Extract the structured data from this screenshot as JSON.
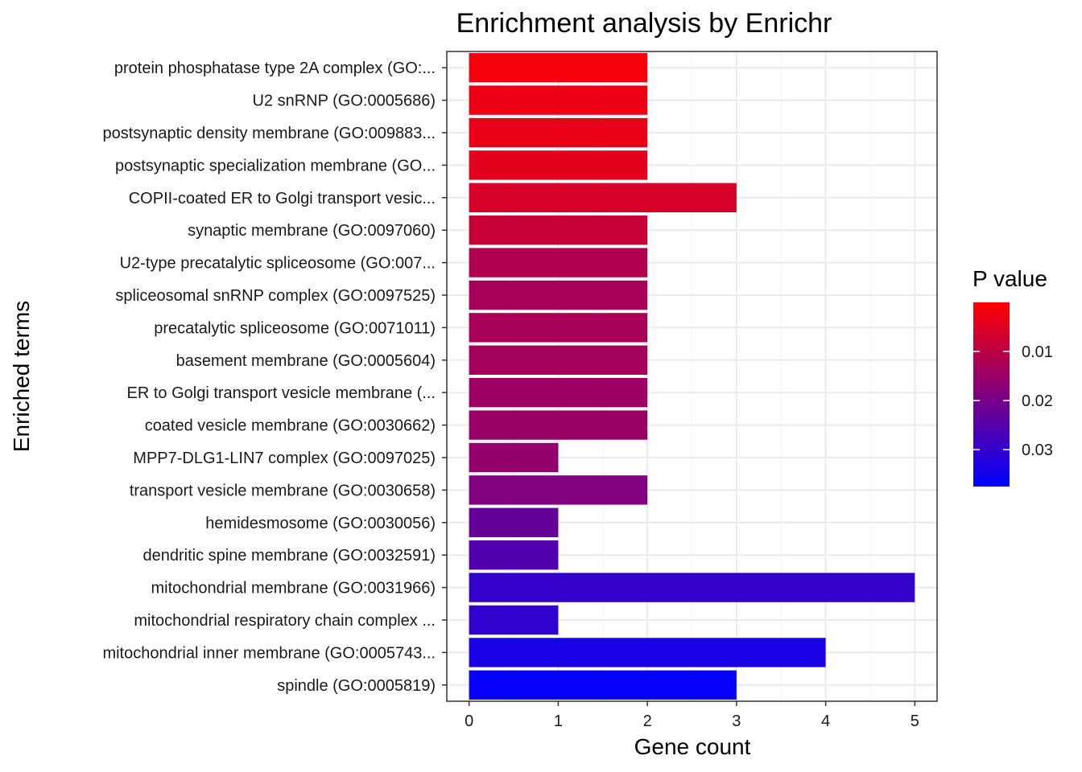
{
  "chart_data": {
    "type": "bar",
    "orientation": "horizontal",
    "title": "Enrichment analysis by Enrichr",
    "xlabel": "Gene count",
    "ylabel": "Enriched terms",
    "xlim": [
      -0.25,
      5.25
    ],
    "xticks": [
      0,
      1,
      2,
      3,
      4,
      5
    ],
    "grid": true,
    "categories": [
      "protein phosphatase type 2A complex (GO:...",
      "U2 snRNP (GO:0005686)",
      "postsynaptic density membrane (GO:009883...",
      "postsynaptic specialization membrane (GO...",
      "COPII-coated ER to Golgi transport vesic...",
      "synaptic membrane (GO:0097060)",
      "U2-type precatalytic spliceosome (GO:007...",
      "spliceosomal snRNP complex (GO:0097525)",
      "precatalytic spliceosome (GO:0071011)",
      "basement membrane (GO:0005604)",
      "ER to Golgi transport vesicle membrane (...",
      "coated vesicle membrane (GO:0030662)",
      "MPP7-DLG1-LIN7 complex (GO:0097025)",
      "transport vesicle membrane (GO:0030658)",
      "hemidesmosome (GO:0030056)",
      "dendritic spine membrane (GO:0032591)",
      "mitochondrial membrane (GO:0031966)",
      "mitochondrial respiratory chain complex ...",
      "mitochondrial inner membrane (GO:0005743...",
      "spindle (GO:0005819)"
    ],
    "values": [
      2,
      2,
      2,
      2,
      3,
      2,
      2,
      2,
      2,
      2,
      2,
      2,
      1,
      2,
      1,
      1,
      5,
      1,
      4,
      3
    ],
    "p_values": [
      0.0018,
      0.003,
      0.0035,
      0.0042,
      0.006,
      0.0082,
      0.0115,
      0.0128,
      0.013,
      0.0135,
      0.0145,
      0.015,
      0.016,
      0.0185,
      0.0225,
      0.0255,
      0.03,
      0.0305,
      0.034,
      0.0365
    ],
    "legend": {
      "title": "P value",
      "position": "right",
      "range": [
        0.0,
        0.0375
      ],
      "ticks": [
        0.01,
        0.02,
        0.03
      ],
      "tick_labels": [
        "0.01",
        "0.02",
        "0.03"
      ],
      "low_color": "#ff0000",
      "high_color": "#0000ff"
    }
  }
}
